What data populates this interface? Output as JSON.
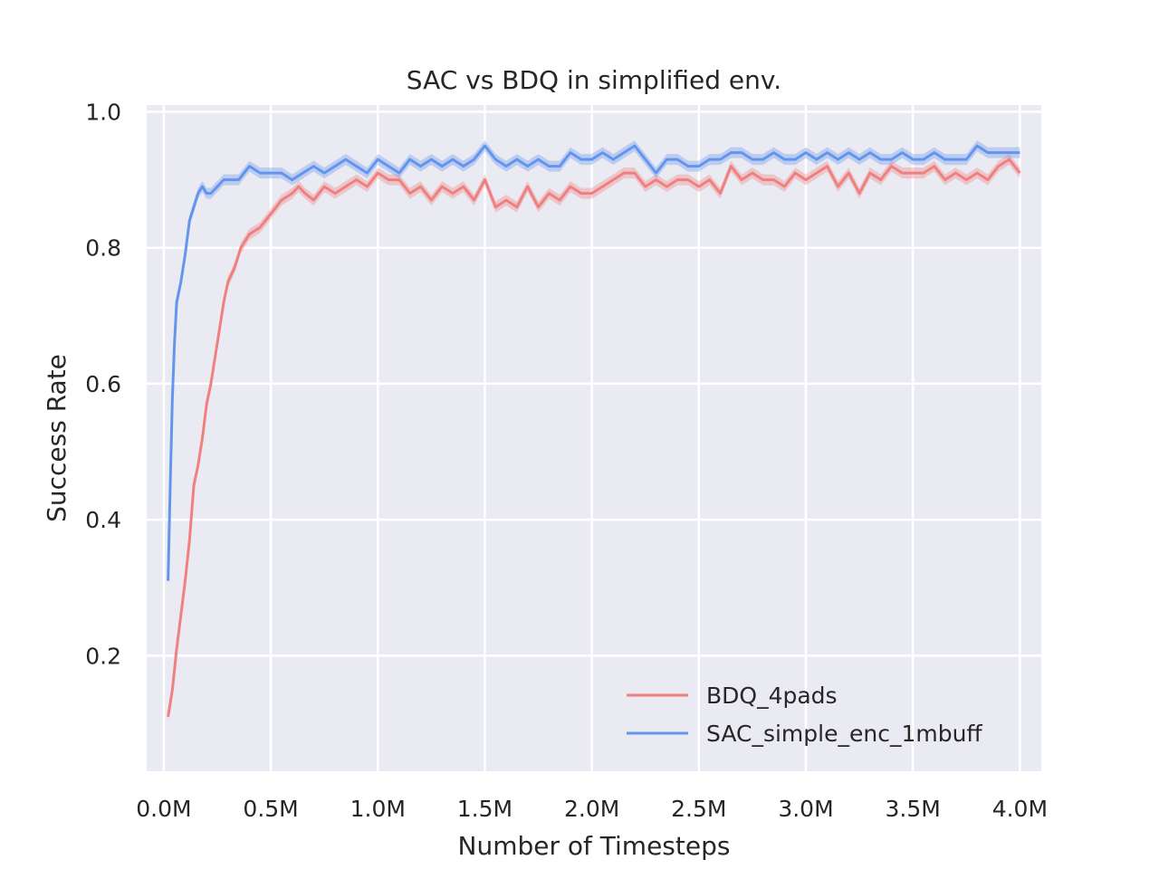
{
  "chart_data": {
    "type": "line",
    "title": "SAC vs BDQ in simplified env.",
    "xlabel": "Number of Timesteps",
    "ylabel": "Success Rate",
    "xlim": [
      -0.08,
      4.1
    ],
    "ylim": [
      0.03,
      1.01
    ],
    "xticks": [
      0,
      0.5,
      1.0,
      1.5,
      2.0,
      2.5,
      3.0,
      3.5,
      4.0
    ],
    "xtick_labels": [
      "0.0M",
      "0.5M",
      "1.0M",
      "1.5M",
      "2.0M",
      "2.5M",
      "3.0M",
      "3.5M",
      "4.0M"
    ],
    "yticks": [
      0.2,
      0.4,
      0.6,
      0.8,
      1.0
    ],
    "ytick_labels": [
      "0.2",
      "0.4",
      "0.6",
      "0.8",
      "1.0"
    ],
    "grid": true,
    "background": "#eaeaf2",
    "legend_position": "lower-right",
    "series": [
      {
        "name": "BDQ_4pads",
        "color": "#f08080",
        "points": [
          [
            0.02,
            0.11
          ],
          [
            0.04,
            0.15
          ],
          [
            0.06,
            0.21
          ],
          [
            0.08,
            0.26
          ],
          [
            0.1,
            0.31
          ],
          [
            0.12,
            0.37
          ],
          [
            0.14,
            0.45
          ],
          [
            0.16,
            0.48
          ],
          [
            0.18,
            0.52
          ],
          [
            0.2,
            0.57
          ],
          [
            0.22,
            0.6
          ],
          [
            0.25,
            0.66
          ],
          [
            0.28,
            0.72
          ],
          [
            0.3,
            0.75
          ],
          [
            0.33,
            0.77
          ],
          [
            0.36,
            0.8
          ],
          [
            0.4,
            0.82
          ],
          [
            0.45,
            0.83
          ],
          [
            0.5,
            0.85
          ],
          [
            0.55,
            0.87
          ],
          [
            0.6,
            0.88
          ],
          [
            0.63,
            0.89
          ],
          [
            0.66,
            0.88
          ],
          [
            0.7,
            0.87
          ],
          [
            0.75,
            0.89
          ],
          [
            0.8,
            0.88
          ],
          [
            0.85,
            0.89
          ],
          [
            0.9,
            0.9
          ],
          [
            0.95,
            0.89
          ],
          [
            1.0,
            0.91
          ],
          [
            1.05,
            0.9
          ],
          [
            1.1,
            0.9
          ],
          [
            1.15,
            0.88
          ],
          [
            1.2,
            0.89
          ],
          [
            1.25,
            0.87
          ],
          [
            1.3,
            0.89
          ],
          [
            1.35,
            0.88
          ],
          [
            1.4,
            0.89
          ],
          [
            1.45,
            0.87
          ],
          [
            1.5,
            0.9
          ],
          [
            1.55,
            0.86
          ],
          [
            1.6,
            0.87
          ],
          [
            1.65,
            0.86
          ],
          [
            1.7,
            0.89
          ],
          [
            1.75,
            0.86
          ],
          [
            1.8,
            0.88
          ],
          [
            1.85,
            0.87
          ],
          [
            1.9,
            0.89
          ],
          [
            1.95,
            0.88
          ],
          [
            2.0,
            0.88
          ],
          [
            2.05,
            0.89
          ],
          [
            2.1,
            0.9
          ],
          [
            2.15,
            0.91
          ],
          [
            2.2,
            0.91
          ],
          [
            2.25,
            0.89
          ],
          [
            2.3,
            0.9
          ],
          [
            2.35,
            0.89
          ],
          [
            2.4,
            0.9
          ],
          [
            2.45,
            0.9
          ],
          [
            2.5,
            0.89
          ],
          [
            2.55,
            0.9
          ],
          [
            2.6,
            0.88
          ],
          [
            2.65,
            0.92
          ],
          [
            2.7,
            0.9
          ],
          [
            2.75,
            0.91
          ],
          [
            2.8,
            0.9
          ],
          [
            2.85,
            0.9
          ],
          [
            2.9,
            0.89
          ],
          [
            2.95,
            0.91
          ],
          [
            3.0,
            0.9
          ],
          [
            3.05,
            0.91
          ],
          [
            3.1,
            0.92
          ],
          [
            3.15,
            0.89
          ],
          [
            3.2,
            0.91
          ],
          [
            3.25,
            0.88
          ],
          [
            3.3,
            0.91
          ],
          [
            3.35,
            0.9
          ],
          [
            3.4,
            0.92
          ],
          [
            3.45,
            0.91
          ],
          [
            3.5,
            0.91
          ],
          [
            3.55,
            0.91
          ],
          [
            3.6,
            0.92
          ],
          [
            3.65,
            0.9
          ],
          [
            3.7,
            0.91
          ],
          [
            3.75,
            0.9
          ],
          [
            3.8,
            0.91
          ],
          [
            3.85,
            0.9
          ],
          [
            3.9,
            0.92
          ],
          [
            3.95,
            0.93
          ],
          [
            4.0,
            0.91
          ]
        ]
      },
      {
        "name": "SAC_simple_enc_1mbuff",
        "color": "#6495ed",
        "points": [
          [
            0.02,
            0.31
          ],
          [
            0.03,
            0.45
          ],
          [
            0.04,
            0.58
          ],
          [
            0.05,
            0.66
          ],
          [
            0.06,
            0.72
          ],
          [
            0.08,
            0.75
          ],
          [
            0.1,
            0.79
          ],
          [
            0.12,
            0.84
          ],
          [
            0.14,
            0.86
          ],
          [
            0.16,
            0.88
          ],
          [
            0.18,
            0.89
          ],
          [
            0.2,
            0.88
          ],
          [
            0.22,
            0.88
          ],
          [
            0.25,
            0.89
          ],
          [
            0.28,
            0.9
          ],
          [
            0.3,
            0.9
          ],
          [
            0.35,
            0.9
          ],
          [
            0.4,
            0.92
          ],
          [
            0.45,
            0.91
          ],
          [
            0.5,
            0.91
          ],
          [
            0.55,
            0.91
          ],
          [
            0.6,
            0.9
          ],
          [
            0.65,
            0.91
          ],
          [
            0.7,
            0.92
          ],
          [
            0.75,
            0.91
          ],
          [
            0.8,
            0.92
          ],
          [
            0.85,
            0.93
          ],
          [
            0.9,
            0.92
          ],
          [
            0.95,
            0.91
          ],
          [
            1.0,
            0.93
          ],
          [
            1.05,
            0.92
          ],
          [
            1.1,
            0.91
          ],
          [
            1.15,
            0.93
          ],
          [
            1.2,
            0.92
          ],
          [
            1.25,
            0.93
          ],
          [
            1.3,
            0.92
          ],
          [
            1.35,
            0.93
          ],
          [
            1.4,
            0.92
          ],
          [
            1.45,
            0.93
          ],
          [
            1.5,
            0.95
          ],
          [
            1.55,
            0.93
          ],
          [
            1.6,
            0.92
          ],
          [
            1.65,
            0.93
          ],
          [
            1.7,
            0.92
          ],
          [
            1.75,
            0.93
          ],
          [
            1.8,
            0.92
          ],
          [
            1.85,
            0.92
          ],
          [
            1.9,
            0.94
          ],
          [
            1.95,
            0.93
          ],
          [
            2.0,
            0.93
          ],
          [
            2.05,
            0.94
          ],
          [
            2.1,
            0.93
          ],
          [
            2.15,
            0.94
          ],
          [
            2.2,
            0.95
          ],
          [
            2.25,
            0.93
          ],
          [
            2.3,
            0.91
          ],
          [
            2.35,
            0.93
          ],
          [
            2.4,
            0.93
          ],
          [
            2.45,
            0.92
          ],
          [
            2.5,
            0.92
          ],
          [
            2.55,
            0.93
          ],
          [
            2.6,
            0.93
          ],
          [
            2.65,
            0.94
          ],
          [
            2.7,
            0.94
          ],
          [
            2.75,
            0.93
          ],
          [
            2.8,
            0.93
          ],
          [
            2.85,
            0.94
          ],
          [
            2.9,
            0.93
          ],
          [
            2.95,
            0.93
          ],
          [
            3.0,
            0.94
          ],
          [
            3.05,
            0.93
          ],
          [
            3.1,
            0.94
          ],
          [
            3.15,
            0.93
          ],
          [
            3.2,
            0.94
          ],
          [
            3.25,
            0.93
          ],
          [
            3.3,
            0.94
          ],
          [
            3.35,
            0.93
          ],
          [
            3.4,
            0.93
          ],
          [
            3.45,
            0.94
          ],
          [
            3.5,
            0.93
          ],
          [
            3.55,
            0.93
          ],
          [
            3.6,
            0.94
          ],
          [
            3.65,
            0.93
          ],
          [
            3.7,
            0.93
          ],
          [
            3.75,
            0.93
          ],
          [
            3.8,
            0.95
          ],
          [
            3.85,
            0.94
          ],
          [
            3.9,
            0.94
          ],
          [
            3.95,
            0.94
          ],
          [
            4.0,
            0.94
          ]
        ]
      }
    ]
  }
}
